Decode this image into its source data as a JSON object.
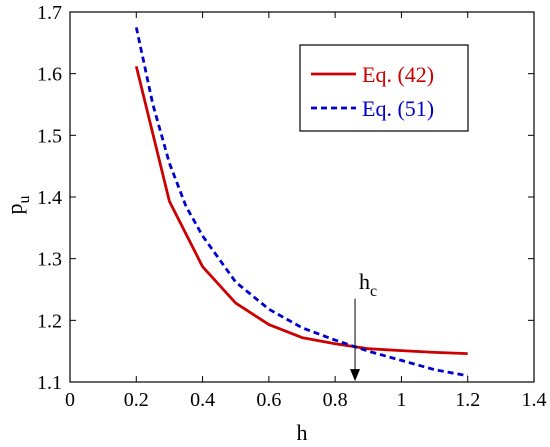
{
  "chart_data": {
    "type": "line",
    "title": "",
    "xlabel": "h",
    "ylabel": {
      "base": "p",
      "sub": "u"
    },
    "xlim": [
      0,
      1.4
    ],
    "ylim": [
      1.1,
      1.7
    ],
    "xticks": [
      0,
      0.2,
      0.4,
      0.6,
      0.8,
      1,
      1.2,
      1.4
    ],
    "yticks": [
      1.1,
      1.2,
      1.3,
      1.4,
      1.5,
      1.6,
      1.7
    ],
    "xtick_labels": [
      "0",
      "0.2",
      "0.4",
      "0.6",
      "0.8",
      "1",
      "1.2",
      "1.4"
    ],
    "ytick_labels": [
      "1.1",
      "1.2",
      "1.3",
      "1.4",
      "1.5",
      "1.6",
      "1.7"
    ],
    "grid": false,
    "legend_position": "top-right",
    "series": [
      {
        "name": "Eq. (42)",
        "color": "#cc0000",
        "style": "solid",
        "x": [
          0.2,
          0.3,
          0.4,
          0.5,
          0.6,
          0.7,
          0.8,
          0.9,
          1.0,
          1.1,
          1.2
        ],
        "y": [
          1.612,
          1.393,
          1.287,
          1.228,
          1.193,
          1.172,
          1.162,
          1.154,
          1.151,
          1.148,
          1.146
        ]
      },
      {
        "name": "Eq. (51)",
        "color": "#0000cc",
        "style": "dashed",
        "x": [
          0.2,
          0.25,
          0.3,
          0.35,
          0.4,
          0.5,
          0.6,
          0.7,
          0.8,
          0.9,
          1.0,
          1.1,
          1.2
        ],
        "y": [
          1.675,
          1.55,
          1.455,
          1.385,
          1.337,
          1.262,
          1.218,
          1.188,
          1.168,
          1.15,
          1.135,
          1.12,
          1.11
        ]
      }
    ],
    "annotation": {
      "label_base": "h",
      "label_sub": "c",
      "x": 0.86,
      "y_top": 1.235,
      "y_bottom": 1.103,
      "icon": "down-arrow"
    }
  }
}
